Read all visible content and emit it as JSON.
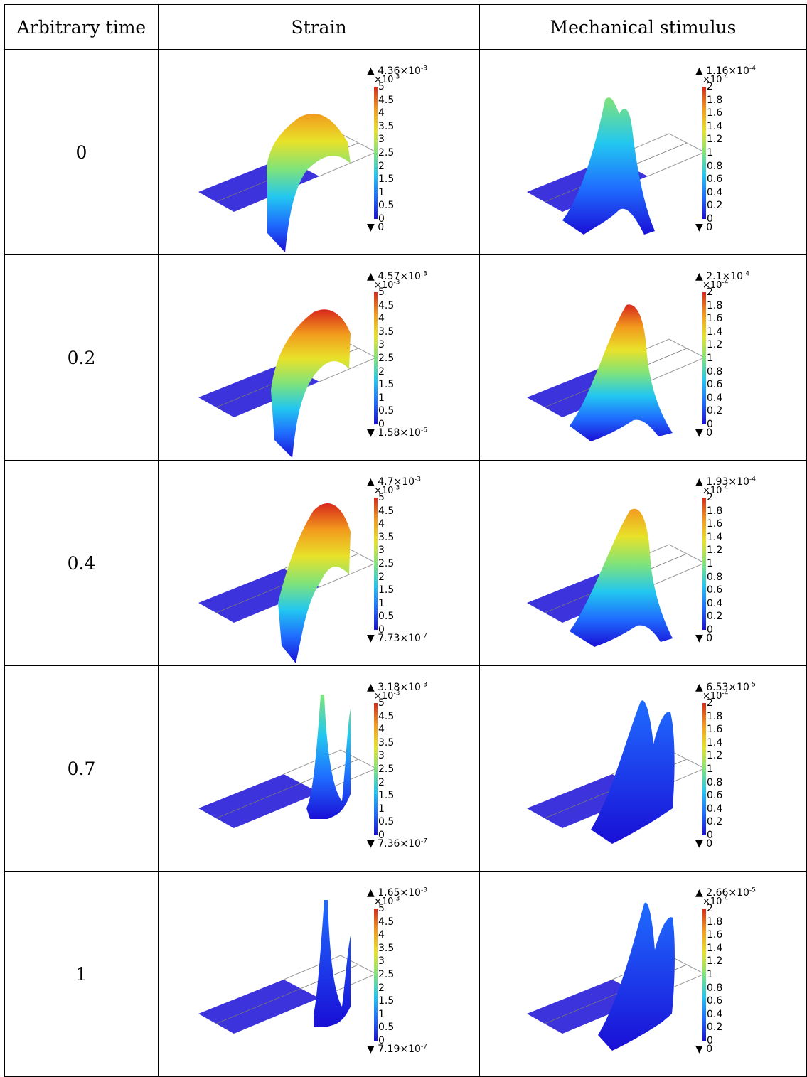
{
  "headers": {
    "time": "Arbitrary time",
    "strain": "Strain",
    "stimulus": "Mechanical stimulus"
  },
  "colorbar_colors": [
    "#1a0fd6",
    "#1f6cff",
    "#22c7f0",
    "#7fe37a",
    "#e8e22a",
    "#f29b1d",
    "#d8281c"
  ],
  "rows": [
    {
      "time": "0",
      "strain": {
        "max": "4.36×10",
        "max_exp": "-3",
        "scale": "×10",
        "scale_exp": "-3",
        "min": "0",
        "min_exp": "",
        "ticks": [
          "5",
          "4.5",
          "4",
          "3.5",
          "3",
          "2.5",
          "2",
          "1.5",
          "1",
          "0.5",
          "0"
        ]
      },
      "stimulus": {
        "max": "1.16×10",
        "max_exp": "-4",
        "scale": "×10",
        "scale_exp": "-4",
        "min": "0",
        "min_exp": "",
        "ticks": [
          "2",
          "1.8",
          "1.6",
          "1.4",
          "1.2",
          "1",
          "0.8",
          "0.6",
          "0.4",
          "0.2",
          "0"
        ]
      }
    },
    {
      "time": "0.2",
      "strain": {
        "max": "4.57×10",
        "max_exp": "-3",
        "scale": "×10",
        "scale_exp": "-3",
        "min": "1.58×10",
        "min_exp": "-6",
        "ticks": [
          "5",
          "4.5",
          "4",
          "3.5",
          "3",
          "2.5",
          "2",
          "1.5",
          "1",
          "0.5",
          "0"
        ]
      },
      "stimulus": {
        "max": "2.1×10",
        "max_exp": "-4",
        "scale": "×10",
        "scale_exp": "-4",
        "min": "0",
        "min_exp": "",
        "ticks": [
          "2",
          "1.8",
          "1.6",
          "1.4",
          "1.2",
          "1",
          "0.8",
          "0.6",
          "0.4",
          "0.2",
          "0"
        ]
      }
    },
    {
      "time": "0.4",
      "strain": {
        "max": "4.7×10",
        "max_exp": "-3",
        "scale": "×10",
        "scale_exp": "-3",
        "min": "7.73×10",
        "min_exp": "-7",
        "ticks": [
          "5",
          "4.5",
          "4",
          "3.5",
          "3",
          "2.5",
          "2",
          "1.5",
          "1",
          "0.5",
          "0"
        ]
      },
      "stimulus": {
        "max": "1.93×10",
        "max_exp": "-4",
        "scale": "×10",
        "scale_exp": "-4",
        "min": "0",
        "min_exp": "",
        "ticks": [
          "2",
          "1.8",
          "1.6",
          "1.4",
          "1.2",
          "1",
          "0.8",
          "0.6",
          "0.4",
          "0.2",
          "0"
        ]
      }
    },
    {
      "time": "0.7",
      "strain": {
        "max": "3.18×10",
        "max_exp": "-3",
        "scale": "×10",
        "scale_exp": "-3",
        "min": "7.36×10",
        "min_exp": "-7",
        "ticks": [
          "5",
          "4.5",
          "4",
          "3.5",
          "3",
          "2.5",
          "2",
          "1.5",
          "1",
          "0.5",
          "0"
        ]
      },
      "stimulus": {
        "max": "6.53×10",
        "max_exp": "-5",
        "scale": "×10",
        "scale_exp": "-4",
        "min": "0",
        "min_exp": "",
        "ticks": [
          "2",
          "1.8",
          "1.6",
          "1.4",
          "1.2",
          "1",
          "0.8",
          "0.6",
          "0.4",
          "0.2",
          "0"
        ]
      }
    },
    {
      "time": "1",
      "strain": {
        "max": "1.65×10",
        "max_exp": "-3",
        "scale": "×10",
        "scale_exp": "-3",
        "min": "7.19×10",
        "min_exp": "-7",
        "ticks": [
          "5",
          "4.5",
          "4",
          "3.5",
          "3",
          "2.5",
          "2",
          "1.5",
          "1",
          "0.5",
          "0"
        ]
      },
      "stimulus": {
        "max": "2.66×10",
        "max_exp": "-5",
        "scale": "×10",
        "scale_exp": "-4",
        "min": "0",
        "min_exp": "",
        "ticks": [
          "2",
          "1.8",
          "1.6",
          "1.4",
          "1.2",
          "1",
          "0.8",
          "0.6",
          "0.4",
          "0.2",
          "0"
        ]
      }
    }
  ]
}
